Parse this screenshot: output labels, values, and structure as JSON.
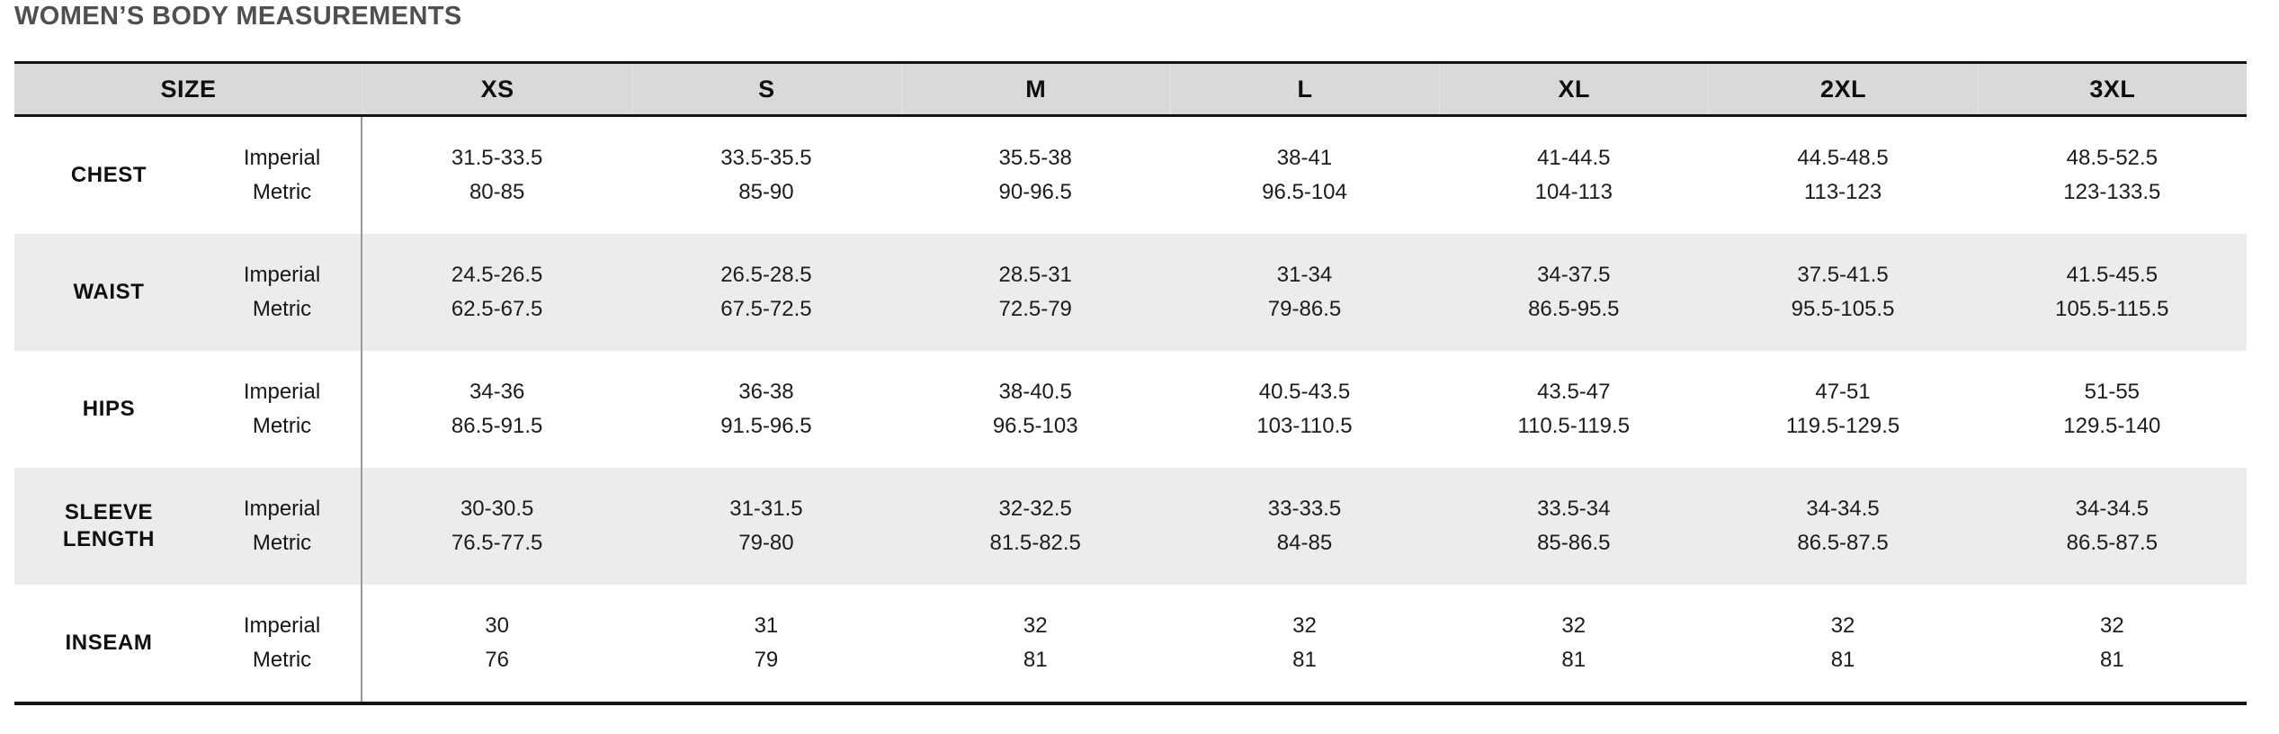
{
  "page": {
    "title": "WOMEN’S BODY MEASUREMENTS"
  },
  "colors": {
    "title_text": "#4f4f4f",
    "header_background": "#d9d9d9",
    "striped_row_background": "#ececec",
    "border_black": "#141414",
    "column_divider_gray": "#999999"
  },
  "table": {
    "size_header": "SIZE",
    "sizes": [
      "XS",
      "S",
      "M",
      "L",
      "XL",
      "2XL",
      "3XL"
    ],
    "unit_labels": {
      "imperial": "Imperial",
      "metric": "Metric"
    },
    "rows": [
      {
        "label": "CHEST",
        "imperial": [
          "31.5-33.5",
          "33.5-35.5",
          "35.5-38",
          "38-41",
          "41-44.5",
          "44.5-48.5",
          "48.5-52.5"
        ],
        "metric": [
          "80-85",
          "85-90",
          "90-96.5",
          "96.5-104",
          "104-113",
          "113-123",
          "123-133.5"
        ]
      },
      {
        "label": "WAIST",
        "imperial": [
          "24.5-26.5",
          "26.5-28.5",
          "28.5-31",
          "31-34",
          "34-37.5",
          "37.5-41.5",
          "41.5-45.5"
        ],
        "metric": [
          "62.5-67.5",
          "67.5-72.5",
          "72.5-79",
          "79-86.5",
          "86.5-95.5",
          "95.5-105.5",
          "105.5-115.5"
        ]
      },
      {
        "label": "HIPS",
        "imperial": [
          "34-36",
          "36-38",
          "38-40.5",
          "40.5-43.5",
          "43.5-47",
          "47-51",
          "51-55"
        ],
        "metric": [
          "86.5-91.5",
          "91.5-96.5",
          "96.5-103",
          "103-110.5",
          "110.5-119.5",
          "119.5-129.5",
          "129.5-140"
        ]
      },
      {
        "label": "SLEEVE LENGTH",
        "imperial": [
          "30-30.5",
          "31-31.5",
          "32-32.5",
          "33-33.5",
          "33.5-34",
          "34-34.5",
          "34-34.5"
        ],
        "metric": [
          "76.5-77.5",
          "79-80",
          "81.5-82.5",
          "84-85",
          "85-86.5",
          "86.5-87.5",
          "86.5-87.5"
        ]
      },
      {
        "label": "INSEAM",
        "imperial": [
          "30",
          "31",
          "32",
          "32",
          "32",
          "32",
          "32"
        ],
        "metric": [
          "76",
          "79",
          "81",
          "81",
          "81",
          "81",
          "81"
        ]
      }
    ]
  }
}
